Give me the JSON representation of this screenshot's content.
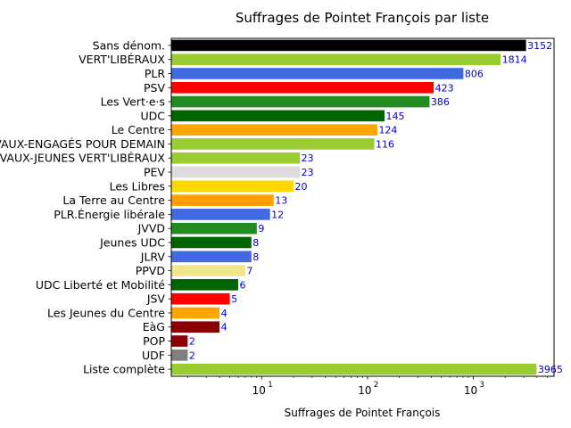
{
  "chart_data": {
    "type": "bar",
    "orientation": "horizontal",
    "title": "Suffrages de Pointet François par liste",
    "xlabel": "Suffrages de Pointet François",
    "ylabel": "",
    "xscale": "log",
    "xlim": [
      1.4,
      5800
    ],
    "x_ticks": [
      {
        "base": "10",
        "exp": "1",
        "value": 10
      },
      {
        "base": "10",
        "exp": "2",
        "value": 100
      },
      {
        "base": "10",
        "exp": "3",
        "value": 1000
      }
    ],
    "grid": false,
    "label_color": "#0000cc",
    "categories": [
      "Sans dénom.",
      "VERT'LIBÉRAUX",
      "PLR",
      "PSV",
      "Les Vert·e·s",
      "UDC",
      "Le Centre",
      "VAUX-ENGAGÉS POUR DEMAIN",
      "VAUX-JEUNES VERT'LIBÉRAUX",
      "PEV",
      "Les Libres",
      "La Terre au Centre",
      "PLR.Énergie libérale",
      "JVVD",
      "Jeunes UDC",
      "JLRV",
      "PPVD",
      "UDC Liberté et Mobilité",
      "JSV",
      "Les Jeunes du Centre",
      "EàG",
      "POP",
      "UDF",
      "Liste complète"
    ],
    "values": [
      3152,
      1814,
      806,
      423,
      386,
      145,
      124,
      116,
      23,
      23,
      20,
      13,
      12,
      9,
      8,
      8,
      7,
      6,
      5,
      4,
      4,
      2,
      2,
      3965
    ],
    "colors": [
      "#000000",
      "#9acd32",
      "#4169e1",
      "#ff0000",
      "#228b22",
      "#006400",
      "#ffa500",
      "#9acd32",
      "#9acd32",
      "#dcdcdc",
      "#ffd700",
      "#ff9f00",
      "#4169e1",
      "#228b22",
      "#006400",
      "#4169e1",
      "#f0e68c",
      "#006400",
      "#ff0000",
      "#ffa500",
      "#8b0000",
      "#8b0000",
      "#808080",
      "#9acd32"
    ]
  }
}
